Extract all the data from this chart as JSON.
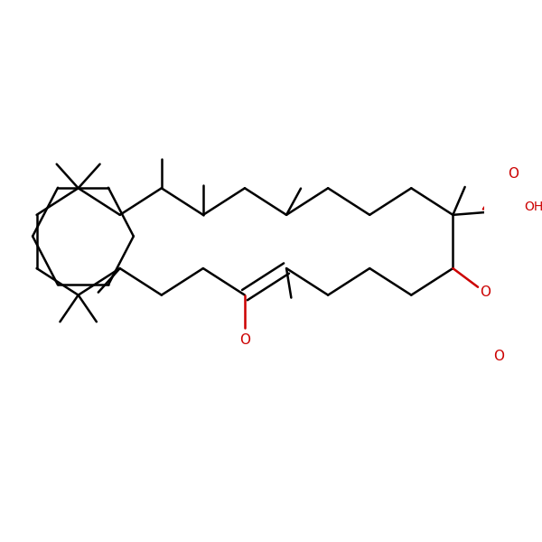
{
  "background": "#ffffff",
  "bond_color": "#000000",
  "red_color": "#cc0000",
  "lw": 1.8,
  "fs": 10,
  "figsize": [
    6.0,
    6.0
  ],
  "dpi": 100,
  "xlim": [
    0,
    10
  ],
  "ylim": [
    0,
    10
  ]
}
